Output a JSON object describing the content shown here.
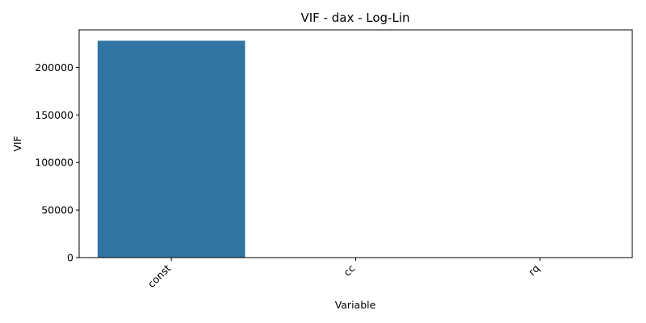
{
  "chart_data": {
    "type": "bar",
    "title": "VIF - dax - Log-Lin",
    "xlabel": "Variable",
    "ylabel": "VIF",
    "categories": [
      "const",
      "cc",
      "rq"
    ],
    "values": [
      228000,
      1.2,
      1.2
    ],
    "ylim": [
      0,
      239400
    ],
    "yticks": [
      0,
      50000,
      100000,
      150000,
      200000
    ],
    "ytick_labels": [
      "0",
      "50000",
      "100000",
      "150000",
      "200000"
    ],
    "bar_color": "#3274a1",
    "grid": false,
    "x_tick_rotation": 45
  }
}
